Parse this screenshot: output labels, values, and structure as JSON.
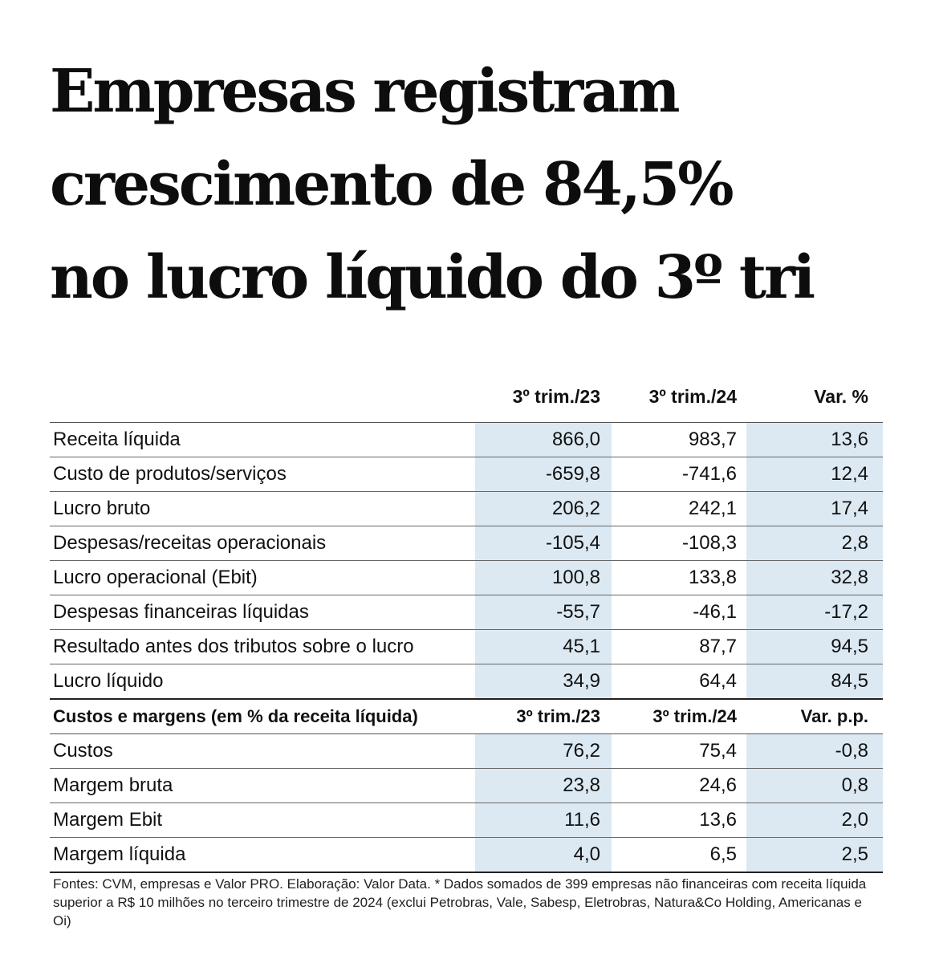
{
  "headline": {
    "line1": "Empresas registram",
    "line2": "crescimento de 84,5%",
    "line3": "no lucro líquido do 3º tri"
  },
  "table": {
    "columns": [
      "3º trim./23",
      "3º trim./24",
      "Var. %"
    ],
    "rows": [
      {
        "label": "Receita líquida",
        "a": "866,0",
        "b": "983,7",
        "v": "13,6"
      },
      {
        "label": "Custo de produtos/serviços",
        "a": "-659,8",
        "b": "-741,6",
        "v": "12,4"
      },
      {
        "label": "Lucro bruto",
        "a": "206,2",
        "b": "242,1",
        "v": "17,4"
      },
      {
        "label": "Despesas/receitas operacionais",
        "a": "-105,4",
        "b": "-108,3",
        "v": "2,8"
      },
      {
        "label": "Lucro operacional (Ebit)",
        "a": "100,8",
        "b": "133,8",
        "v": "32,8"
      },
      {
        "label": "Despesas financeiras líquidas",
        "a": "-55,7",
        "b": "-46,1",
        "v": "-17,2"
      },
      {
        "label": "Resultado antes dos tributos sobre o lucro",
        "a": "45,1",
        "b": "87,7",
        "v": "94,5"
      },
      {
        "label": "Lucro líquido",
        "a": "34,9",
        "b": "64,4",
        "v": "84,5"
      }
    ],
    "section2": {
      "title": "Custos e margens (em % da receita líquida)",
      "columns": [
        "3º trim./23",
        "3º trim./24",
        "Var. p.p."
      ],
      "rows": [
        {
          "label": "Custos",
          "a": "76,2",
          "b": "75,4",
          "v": "-0,8"
        },
        {
          "label": "Margem bruta",
          "a": "23,8",
          "b": "24,6",
          "v": "0,8"
        },
        {
          "label": "Margem Ebit",
          "a": "11,6",
          "b": "13,6",
          "v": "2,0"
        },
        {
          "label": "Margem líquida",
          "a": "4,0",
          "b": "6,5",
          "v": "2,5"
        }
      ]
    }
  },
  "footnote": "Fontes: CVM, empresas e Valor PRO. Elaboração: Valor Data. * Dados somados de 399 empresas não financeiras com receita líquida superior a R$ 10 milhões no terceiro trimestre de 2024 (exclui Petrobras, Vale, Sabesp, Eletrobras, Natura&Co Holding, Americanas e Oi)",
  "colors": {
    "highlight_column": "#dce9f3",
    "rule": "#555555",
    "text": "#111111"
  }
}
